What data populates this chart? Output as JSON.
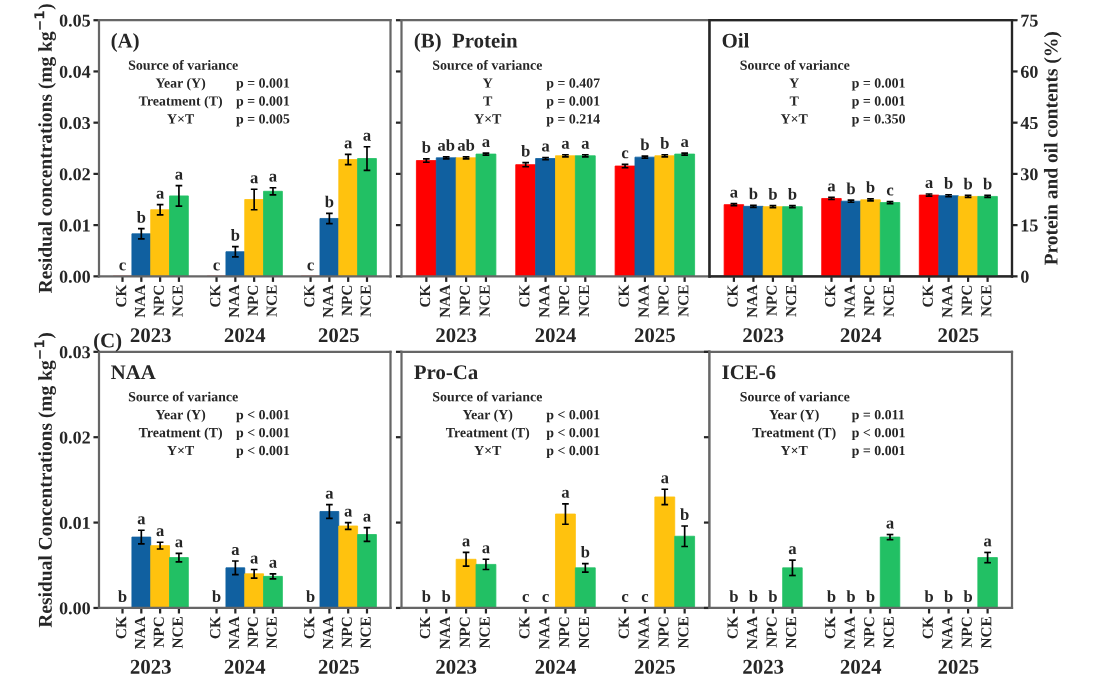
{
  "chart_data": [
    {
      "type": "bar",
      "title": "(A)",
      "ylabel": "Residual concentrations (mg kg$^{−1}$)",
      "categories": [
        "2023",
        "2024",
        "2025"
      ],
      "ylim": [
        0,
        0.05
      ],
      "yticks": [
        {
          "value": 0,
          "label": "0.00"
        },
        {
          "value": 0.01,
          "label": "0.01"
        },
        {
          "value": 0.02,
          "label": "0.02"
        },
        {
          "value": 0.03,
          "label": "0.03"
        },
        {
          "value": 0.04,
          "label": "0.04"
        },
        {
          "value": 0.05,
          "label": "0.05"
        }
      ],
      "annotations": [
        "Source of variance",
        "Year (Y)",
        "p = 0.001",
        "Treatment (T)",
        "p = 0.001",
        "Y×T",
        "p = 0.005"
      ],
      "series": [
        {
          "name": "CK",
          "color": "#ff0000",
          "values": [
            0,
            0,
            0
          ],
          "errors": [
            null,
            null,
            null
          ],
          "value_labels": [
            "c",
            "c",
            "c"
          ]
        },
        {
          "name": "NAA",
          "color": "#1060a0",
          "values": [
            0.0083,
            0.0048,
            0.0113
          ],
          "errors": [
            0.001,
            0.001,
            0.001
          ],
          "value_labels": [
            "b",
            "b",
            "b"
          ]
        },
        {
          "name": "NPC",
          "color": "#ffc20e",
          "values": [
            0.013,
            0.015,
            0.0228
          ],
          "errors": [
            0.001,
            0.002,
            0.001
          ],
          "value_labels": [
            "a",
            "a",
            "a"
          ]
        },
        {
          "name": "NCE",
          "color": "#22c064",
          "values": [
            0.0157,
            0.0166,
            0.023
          ],
          "errors": [
            0.002,
            0.0007,
            0.0023
          ],
          "value_labels": [
            "a",
            "a",
            "a"
          ]
        }
      ]
    },
    {
      "type": "bar",
      "title": "(B)  Protein",
      "categories": [
        "2023",
        "2024",
        "2025"
      ],
      "ylim": [
        0,
        75
      ],
      "yticks": [
        0,
        15,
        30,
        45,
        60,
        75
      ],
      "tick_labels": "x",
      "annotations": [
        "Source of variance",
        "Y",
        "p = 0.407",
        "T",
        "p = 0.001",
        "Y×T",
        "p = 0.214"
      ],
      "series": [
        {
          "name": "CK",
          "color": "#ff0000",
          "values": [
            33.9,
            32.7,
            32.3
          ],
          "errors": [
            0.5,
            0.6,
            0.5
          ],
          "value_labels": [
            "b",
            "b",
            "c"
          ]
        },
        {
          "name": "NAA",
          "color": "#1060a0",
          "values": [
            34.7,
            34.5,
            34.9
          ],
          "errors": [
            0.3,
            0.3,
            0.3
          ],
          "value_labels": [
            "ab",
            "a",
            "b"
          ]
        },
        {
          "name": "NPC",
          "color": "#ffc20e",
          "values": [
            34.7,
            35.3,
            35.3
          ],
          "errors": [
            0.3,
            0.3,
            0.3
          ],
          "value_labels": [
            "ab",
            "a",
            "b"
          ]
        },
        {
          "name": "NCE",
          "color": "#22c064",
          "values": [
            35.8,
            35.3,
            35.8
          ],
          "errors": [
            0.3,
            0.3,
            0.3
          ],
          "value_labels": [
            "a",
            "a",
            "a"
          ]
        }
      ]
    },
    {
      "type": "bar",
      "title": "Oil",
      "categories": [
        "2023",
        "2024",
        "2025"
      ],
      "y2label": "Protein and oil contents (%)",
      "y2lim": [
        0,
        75
      ],
      "y2ticks": [
        0,
        15,
        30,
        45,
        60,
        75
      ],
      "annotations": [
        "Source of variance",
        "Y",
        "p = 0.001",
        "T",
        "p = 0.001",
        "Y×T",
        "p = 0.350"
      ],
      "series": [
        {
          "name": "CK",
          "color": "#ff0000",
          "axis": "y2",
          "values": [
            21.0,
            22.8,
            23.8
          ],
          "errors": [
            0.3,
            0.3,
            0.3
          ],
          "value_labels": [
            "a",
            "a",
            "a"
          ]
        },
        {
          "name": "NAA",
          "color": "#1060a0",
          "axis": "y2",
          "values": [
            20.5,
            22.0,
            23.6
          ],
          "errors": [
            0.3,
            0.3,
            0.3
          ],
          "value_labels": [
            "b",
            "b",
            "b"
          ]
        },
        {
          "name": "NPC",
          "color": "#ffc20e",
          "axis": "y2",
          "values": [
            20.4,
            22.4,
            23.4
          ],
          "errors": [
            0.3,
            0.3,
            0.3
          ],
          "value_labels": [
            "b",
            "b",
            "b"
          ]
        },
        {
          "name": "NCE",
          "color": "#22c064",
          "axis": "y2",
          "values": [
            20.4,
            21.6,
            23.4
          ],
          "errors": [
            0.3,
            0.3,
            0.3
          ],
          "value_labels": [
            "b",
            "c",
            "b"
          ]
        }
      ]
    },
    {
      "type": "bar",
      "title": "(C)",
      "subtitle": "NAA",
      "ylabel": "Residual Concentrations (mg kg$^{−1}$)",
      "categories": [
        "2023",
        "2024",
        "2025"
      ],
      "ylim": [
        0,
        0.03
      ],
      "yticks": [
        {
          "value": 0,
          "label": "0.00"
        },
        {
          "value": 0.01,
          "label": "0.01"
        },
        {
          "value": 0.02,
          "label": "0.02"
        },
        {
          "value": 0.03,
          "label": "0.03"
        }
      ],
      "annotations": [
        "Source of variance",
        "Year (Y)",
        "p < 0.001",
        "Treatment (T)",
        "p < 0.001",
        "Y×T",
        "p < 0.001"
      ],
      "series": [
        {
          "name": "CK",
          "color": "#ff0000",
          "values": [
            0,
            0,
            0
          ],
          "errors": [
            null,
            null,
            null
          ],
          "value_labels": [
            "b",
            "b",
            "b"
          ]
        },
        {
          "name": "NAA",
          "color": "#1060a0",
          "values": [
            0.0083,
            0.0047,
            0.0113
          ],
          "errors": [
            0.0008,
            0.0008,
            0.0008
          ],
          "value_labels": [
            "a",
            "a",
            "a"
          ]
        },
        {
          "name": "NPC",
          "color": "#ffc20e",
          "values": [
            0.0073,
            0.004,
            0.0096
          ],
          "errors": [
            0.0004,
            0.0005,
            0.0004
          ],
          "value_labels": [
            "a",
            "a",
            "a"
          ]
        },
        {
          "name": "NCE",
          "color": "#22c064",
          "values": [
            0.0059,
            0.0037,
            0.0086
          ],
          "errors": [
            0.0005,
            0.0003,
            0.0008
          ],
          "value_labels": [
            "a",
            "a",
            "a"
          ]
        }
      ]
    },
    {
      "type": "bar",
      "title": "Pro-Ca",
      "categories": [
        "2023",
        "2024",
        "2025"
      ],
      "ylim": [
        0,
        0.03
      ],
      "yticks": [
        0,
        0.01,
        0.02,
        0.03
      ],
      "tick_labels": "x",
      "annotations": [
        "Source of variance",
        "Year (Y)",
        "p < 0.001",
        "Treatment (T)",
        "p < 0.001",
        "Y×T",
        "p < 0.001"
      ],
      "series": [
        {
          "name": "CK",
          "color": "#ff0000",
          "values": [
            0,
            0,
            0
          ],
          "errors": [
            null,
            null,
            null
          ],
          "value_labels": [
            "b",
            "c",
            "c"
          ]
        },
        {
          "name": "NAA",
          "color": "#1060a0",
          "values": [
            0,
            0,
            0
          ],
          "errors": [
            null,
            null,
            null
          ],
          "value_labels": [
            "b",
            "c",
            "c"
          ]
        },
        {
          "name": "NPC",
          "color": "#ffc20e",
          "values": [
            0.0057,
            0.011,
            0.013
          ],
          "errors": [
            0.0008,
            0.0012,
            0.0009
          ],
          "value_labels": [
            "a",
            "a",
            "a"
          ]
        },
        {
          "name": "NCE",
          "color": "#22c064",
          "values": [
            0.0051,
            0.0047,
            0.0084
          ],
          "errors": [
            0.0006,
            0.0005,
            0.0012
          ],
          "value_labels": [
            "a",
            "b",
            "b"
          ]
        }
      ]
    },
    {
      "type": "bar",
      "title": "ICE-6",
      "categories": [
        "2023",
        "2024",
        "2025"
      ],
      "ylim": [
        0,
        0.03
      ],
      "yticks": [
        0,
        0.01,
        0.02,
        0.03
      ],
      "tick_labels": "x",
      "annotations": [
        "Source of variance",
        "Year (Y)",
        "p = 0.011",
        "Treatment (T)",
        "p < 0.001",
        "Y×T",
        "p = 0.001"
      ],
      "series": [
        {
          "name": "CK",
          "color": "#ff0000",
          "values": [
            0,
            0,
            0
          ],
          "errors": [
            null,
            null,
            null
          ],
          "value_labels": [
            "b",
            "b",
            "b"
          ]
        },
        {
          "name": "NAA",
          "color": "#1060a0",
          "values": [
            0,
            0,
            0
          ],
          "errors": [
            null,
            null,
            null
          ],
          "value_labels": [
            "b",
            "b",
            "b"
          ]
        },
        {
          "name": "NPC",
          "color": "#ffc20e",
          "values": [
            0,
            0,
            0
          ],
          "errors": [
            null,
            null,
            null
          ],
          "value_labels": [
            "b",
            "b",
            "b"
          ]
        },
        {
          "name": "NCE",
          "color": "#22c064",
          "values": [
            0.0047,
            0.0083,
            0.0059
          ],
          "errors": [
            0.0009,
            0.0003,
            0.0006
          ],
          "value_labels": [
            "a",
            "a",
            "a"
          ]
        }
      ]
    }
  ]
}
